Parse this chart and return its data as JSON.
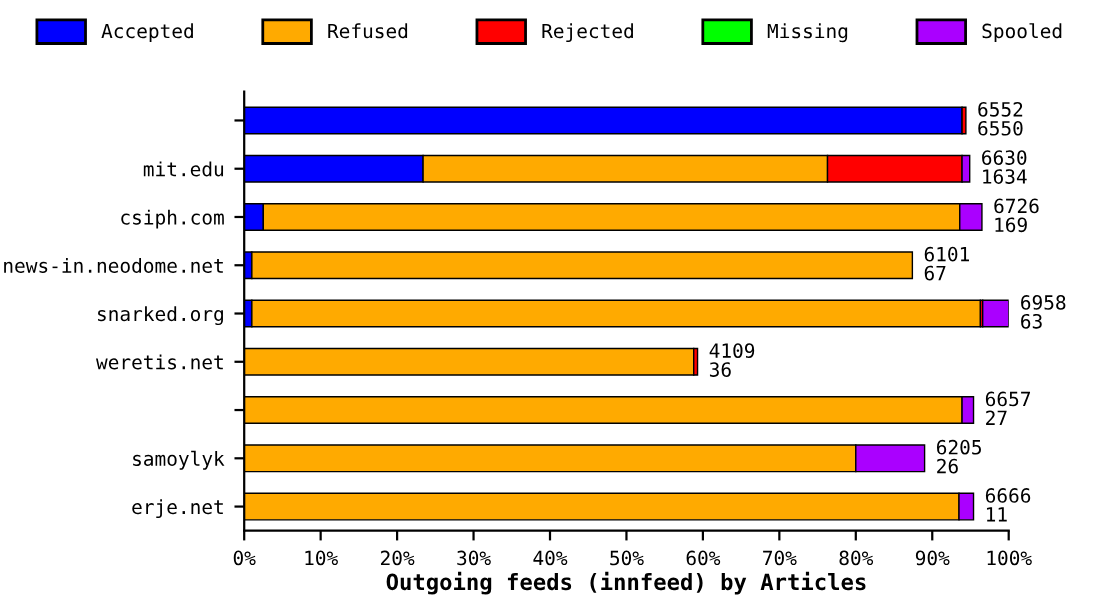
{
  "chart_data": {
    "type": "bar",
    "orientation": "horizontal",
    "stacked": true,
    "xlabel": "Outgoing feeds (innfeed) by Articles",
    "categories": [
      null,
      "mit.edu",
      "csiph.com",
      "news-in.neodome.net",
      "snarked.org",
      "weretis.net",
      null,
      "samoylyk",
      "erje.net"
    ],
    "series": [
      {
        "name": "Accepted",
        "color": "#0000ff",
        "values": [
          93.9,
          23.4,
          2.5,
          1.0,
          1.0,
          0,
          0,
          0,
          0
        ]
      },
      {
        "name": "Refused",
        "color": "#ffaa00",
        "values": [
          0,
          52.9,
          91.1,
          86.4,
          95.3,
          58.8,
          93.9,
          80.0,
          93.5
        ]
      },
      {
        "name": "Rejected",
        "color": "#ff0000",
        "values": [
          0.5,
          17.6,
          0,
          0,
          0.3,
          0.5,
          0,
          0,
          0
        ]
      },
      {
        "name": "Missing",
        "color": "#00ff00",
        "values": [
          0,
          0,
          0,
          0,
          0,
          0,
          0,
          0,
          0
        ]
      },
      {
        "name": "Spooled",
        "color": "#aa00ff",
        "values": [
          0,
          1.0,
          2.9,
          0,
          3.4,
          0,
          1.5,
          9.0,
          1.9
        ]
      }
    ],
    "annotations": [
      "6552\n6550",
      "6630\n1634",
      "6726\n169",
      "6101\n67",
      "6958\n63",
      "4109\n36",
      "6657\n27",
      "6205\n26",
      "6666\n11"
    ],
    "xlim": [
      0,
      100
    ],
    "xticks": [
      {
        "value": 0,
        "label": "0%"
      },
      {
        "value": 10,
        "label": "10%"
      },
      {
        "value": 20,
        "label": "20%"
      },
      {
        "value": 30,
        "label": "30%"
      },
      {
        "value": 40,
        "label": "40%"
      },
      {
        "value": 50,
        "label": "50%"
      },
      {
        "value": 60,
        "label": "60%"
      },
      {
        "value": 70,
        "label": "70%"
      },
      {
        "value": 80,
        "label": "80%"
      },
      {
        "value": 90,
        "label": "90%"
      },
      {
        "value": 100,
        "label": "100%"
      }
    ],
    "legend": "top"
  }
}
